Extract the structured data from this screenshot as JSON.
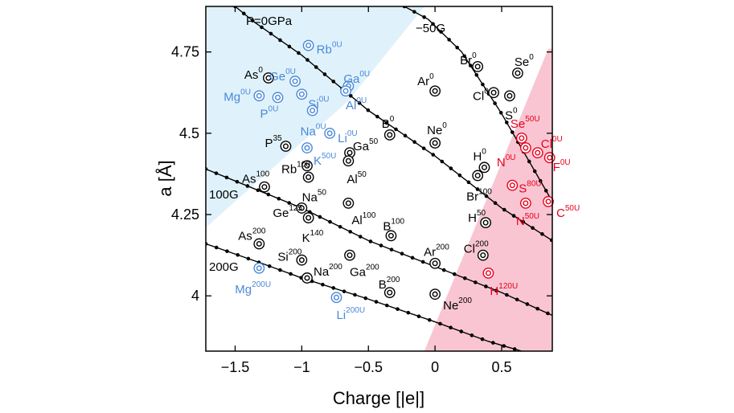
{
  "chart_data": {
    "type": "scatter",
    "xlabel": "Charge [|e|]",
    "ylabel": "a [Å]",
    "xlim": [
      -1.72,
      0.88
    ],
    "ylim": [
      3.83,
      4.89
    ],
    "x_ticks": [
      -1.5,
      -1.0,
      -0.5,
      0,
      0.5
    ],
    "x_tick_labels": [
      "−1.5",
      "−1",
      "−0.5",
      "0",
      "0.5"
    ],
    "y_ticks": [
      4.0,
      4.25,
      4.5,
      4.75
    ],
    "y_tick_labels": [
      "4",
      "4.25",
      "4.5",
      "4.75"
    ],
    "colors": {
      "neutral": "#000000",
      "blue": "#4a88d8",
      "red": "#e8001c",
      "blue_region": "#dff2fb",
      "red_region": "#f9c5d2"
    },
    "regions": [
      {
        "name": "blue",
        "polygon": [
          [
            -1.72,
            4.21
          ],
          [
            -1.72,
            4.89
          ],
          [
            -0.08,
            4.89
          ],
          [
            -0.65,
            4.6
          ]
        ]
      },
      {
        "name": "red",
        "polygon": [
          [
            -0.08,
            3.83
          ],
          [
            0.88,
            3.83
          ],
          [
            0.88,
            4.76
          ],
          [
            0.85,
            4.76
          ],
          [
            0.3,
            4.21
          ]
        ]
      }
    ],
    "isobars": [
      {
        "label": "P=0GPa",
        "points": [
          [
            -1.5,
            4.89
          ],
          [
            -1.35,
            4.84
          ],
          [
            -1.0,
            4.74
          ],
          [
            -0.5,
            4.57
          ],
          [
            0,
            4.43
          ],
          [
            0.5,
            4.27
          ],
          [
            0.88,
            4.17
          ]
        ]
      },
      {
        "label": "−50G",
        "points": [
          [
            -0.23,
            4.89
          ],
          [
            -0.05,
            4.85
          ],
          [
            0.2,
            4.75
          ],
          [
            0.5,
            4.56
          ],
          [
            0.88,
            4.29
          ]
        ]
      },
      {
        "label": "100G",
        "points": [
          [
            -1.72,
            4.39
          ],
          [
            -1.3,
            4.32
          ],
          [
            -1.0,
            4.27
          ],
          [
            -0.5,
            4.17
          ],
          [
            0,
            4.09
          ],
          [
            0.5,
            4.01
          ],
          [
            0.88,
            3.94
          ]
        ]
      },
      {
        "label": "200G",
        "points": [
          [
            -1.72,
            4.16
          ],
          [
            -1.3,
            4.1
          ],
          [
            -1.0,
            4.055
          ],
          [
            -0.5,
            3.99
          ],
          [
            0,
            3.92
          ],
          [
            0.4,
            3.86
          ],
          [
            0.65,
            3.83
          ]
        ]
      }
    ],
    "points": [
      {
        "el": "Rb",
        "p": "0U",
        "x": -0.95,
        "y": 4.77,
        "c": "blue",
        "dx": 10,
        "dy": 5
      },
      {
        "el": "As",
        "p": "0",
        "x": -1.25,
        "y": 4.67,
        "c": "black",
        "dx": -30,
        "dy": -4
      },
      {
        "el": "Ge",
        "p": "0U",
        "x": -1.05,
        "y": 4.66,
        "c": "blue",
        "dx": -32,
        "dy": -6
      },
      {
        "el": "Ga",
        "p": "0U",
        "x": -0.65,
        "y": 4.645,
        "c": "blue",
        "dx": -6,
        "dy": -9
      },
      {
        "el": "Mg",
        "p": "0U",
        "x": -1.32,
        "y": 4.615,
        "c": "blue",
        "dx": -44,
        "dy": 1
      },
      {
        "el": "P",
        "p": "0U",
        "x": -1.18,
        "y": 4.61,
        "c": "blue",
        "dx": -22,
        "dy": 20
      },
      {
        "el": "Si",
        "p": "0U",
        "x": -1.0,
        "y": 4.62,
        "c": "blue",
        "dx": 8,
        "dy": 12
      },
      {
        "el": "Al",
        "p": "0U",
        "x": -0.67,
        "y": 4.63,
        "c": "blue",
        "dx": 0,
        "dy": 18
      },
      {
        "el": "Na",
        "p": "0U",
        "x": -0.92,
        "y": 4.57,
        "c": "blue",
        "dx": -15,
        "dy": 26
      },
      {
        "el": "Li",
        "p": "0U",
        "x": -0.79,
        "y": 4.5,
        "c": "blue",
        "dx": 10,
        "dy": 6
      },
      {
        "el": "K",
        "p": "50U",
        "x": -0.96,
        "y": 4.455,
        "c": "blue",
        "dx": 8,
        "dy": 16
      },
      {
        "el": "P",
        "p": "35",
        "x": -1.12,
        "y": 4.46,
        "c": "black",
        "dx": -26,
        "dy": -4
      },
      {
        "el": "Ga",
        "p": "50",
        "x": -0.64,
        "y": 4.44,
        "c": "black",
        "dx": 4,
        "dy": -8
      },
      {
        "el": "B",
        "p": "0",
        "x": -0.34,
        "y": 4.495,
        "c": "black",
        "dx": -10,
        "dy": -14
      },
      {
        "el": "Rb",
        "p": "100",
        "x": -0.96,
        "y": 4.4,
        "c": "black",
        "dx": -32,
        "dy": 4
      },
      {
        "el": "Al",
        "p": "50",
        "x": -0.65,
        "y": 4.415,
        "c": "black",
        "dx": -2,
        "dy": 23
      },
      {
        "el": "Na",
        "p": "50",
        "x": -0.95,
        "y": 4.365,
        "c": "black",
        "dx": -8,
        "dy": 25
      },
      {
        "el": "As",
        "p": "100",
        "x": -1.28,
        "y": 4.335,
        "c": "black",
        "dx": -28,
        "dy": -10
      },
      {
        "el": "Ge",
        "p": "125",
        "x": -1.0,
        "y": 4.27,
        "c": "black",
        "dx": -36,
        "dy": 6
      },
      {
        "el": "Al",
        "p": "100",
        "x": -0.65,
        "y": 4.285,
        "c": "black",
        "dx": 4,
        "dy": 21
      },
      {
        "el": "K",
        "p": "140",
        "x": -0.95,
        "y": 4.24,
        "c": "black",
        "dx": -8,
        "dy": 25
      },
      {
        "el": "B",
        "p": "100",
        "x": -0.33,
        "y": 4.185,
        "c": "black",
        "dx": -10,
        "dy": -12
      },
      {
        "el": "As",
        "p": "200",
        "x": -1.32,
        "y": 4.16,
        "c": "black",
        "dx": -26,
        "dy": -10
      },
      {
        "el": "Si",
        "p": "200",
        "x": -1.0,
        "y": 4.11,
        "c": "black",
        "dx": -30,
        "dy": -4
      },
      {
        "el": "Ga",
        "p": "200",
        "x": -0.64,
        "y": 4.125,
        "c": "black",
        "dx": 0,
        "dy": 21
      },
      {
        "el": "Na",
        "p": "200",
        "x": -0.96,
        "y": 4.055,
        "c": "black",
        "dx": 8,
        "dy": -8
      },
      {
        "el": "Mg",
        "p": "200U",
        "x": -1.32,
        "y": 4.085,
        "c": "blue",
        "dx": -30,
        "dy": 26
      },
      {
        "el": "B",
        "p": "200",
        "x": -0.34,
        "y": 4.01,
        "c": "black",
        "dx": -14,
        "dy": -10
      },
      {
        "el": "Li",
        "p": "200U",
        "x": -0.74,
        "y": 3.995,
        "c": "blue",
        "dx": 0,
        "dy": 22
      },
      {
        "el": "Ar",
        "p": "200",
        "x": 0.0,
        "y": 4.1,
        "c": "black",
        "dx": -14,
        "dy": -14
      },
      {
        "el": "Ne",
        "p": "200",
        "x": 0.0,
        "y": 4.005,
        "c": "black",
        "dx": 10,
        "dy": 14
      },
      {
        "el": "Ne",
        "p": "0",
        "x": 0.0,
        "y": 4.47,
        "c": "black",
        "dx": -10,
        "dy": -16
      },
      {
        "el": "Ar",
        "p": "0",
        "x": 0.0,
        "y": 4.63,
        "c": "black",
        "dx": -22,
        "dy": -12
      },
      {
        "el": "Br",
        "p": "0",
        "x": 0.32,
        "y": 4.705,
        "c": "black",
        "dx": -22,
        "dy": -8
      },
      {
        "el": "Se",
        "p": "0",
        "x": 0.62,
        "y": 4.685,
        "c": "black",
        "dx": -4,
        "dy": -14
      },
      {
        "el": "Cl",
        "p": "0",
        "x": 0.44,
        "y": 4.625,
        "c": "black",
        "dx": -26,
        "dy": 4
      },
      {
        "el": "S",
        "p": "0",
        "x": 0.56,
        "y": 4.615,
        "c": "black",
        "dx": -6,
        "dy": 24
      },
      {
        "el": "H",
        "p": "0",
        "x": 0.37,
        "y": 4.395,
        "c": "black",
        "dx": -14,
        "dy": -14
      },
      {
        "el": "Br",
        "p": "100",
        "x": 0.32,
        "y": 4.37,
        "c": "black",
        "dx": -14,
        "dy": 26
      },
      {
        "el": "Se",
        "p": "50U",
        "x": 0.65,
        "y": 4.485,
        "c": "red",
        "dx": -14,
        "dy": -18
      },
      {
        "el": "N",
        "p": "0U",
        "x": 0.68,
        "y": 4.455,
        "c": "red",
        "dx": -36,
        "dy": 18
      },
      {
        "el": "Cl",
        "p": "0U",
        "x": 0.77,
        "y": 4.44,
        "c": "red",
        "dx": 4,
        "dy": -11
      },
      {
        "el": "F",
        "p": "0U",
        "x": 0.86,
        "y": 4.425,
        "c": "red",
        "dx": 4,
        "dy": 12
      },
      {
        "el": "S",
        "p": "80U",
        "x": 0.58,
        "y": 4.34,
        "c": "red",
        "dx": 8,
        "dy": 4
      },
      {
        "el": "C",
        "p": "50U",
        "x": 0.85,
        "y": 4.29,
        "c": "red",
        "dx": 10,
        "dy": 14
      },
      {
        "el": "N",
        "p": "50U",
        "x": 0.68,
        "y": 4.285,
        "c": "red",
        "dx": -12,
        "dy": 22
      },
      {
        "el": "H",
        "p": "50",
        "x": 0.38,
        "y": 4.225,
        "c": "black",
        "dx": -22,
        "dy": -6
      },
      {
        "el": "Cl",
        "p": "200",
        "x": 0.36,
        "y": 4.125,
        "c": "black",
        "dx": -24,
        "dy": -8
      },
      {
        "el": "H",
        "p": "120U",
        "x": 0.4,
        "y": 4.07,
        "c": "red",
        "dx": 2,
        "dy": 22
      }
    ]
  }
}
